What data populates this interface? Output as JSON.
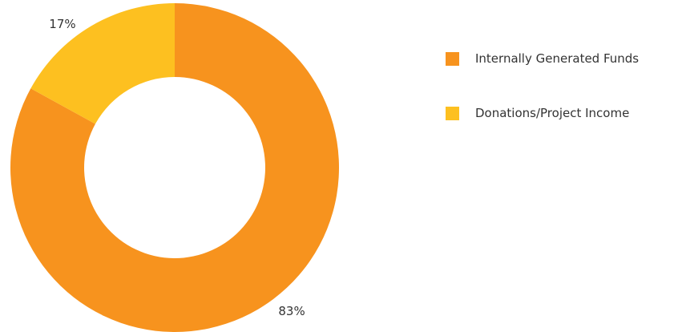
{
  "chart_data": {
    "type": "pie",
    "variant": "donut",
    "title": "",
    "categories": [
      "Internally Generated Funds",
      "Donations/Project Income"
    ],
    "values": [
      83,
      17
    ],
    "unit": "%",
    "data_labels": [
      "83%",
      "17%"
    ],
    "colors": [
      "#F7931E",
      "#FDC020"
    ],
    "legend_position": "right"
  },
  "legend": {
    "items": [
      {
        "label": "Internally Generated Funds",
        "color": "#F7931E"
      },
      {
        "label": "Donations/Project Income",
        "color": "#FDC020"
      }
    ]
  }
}
